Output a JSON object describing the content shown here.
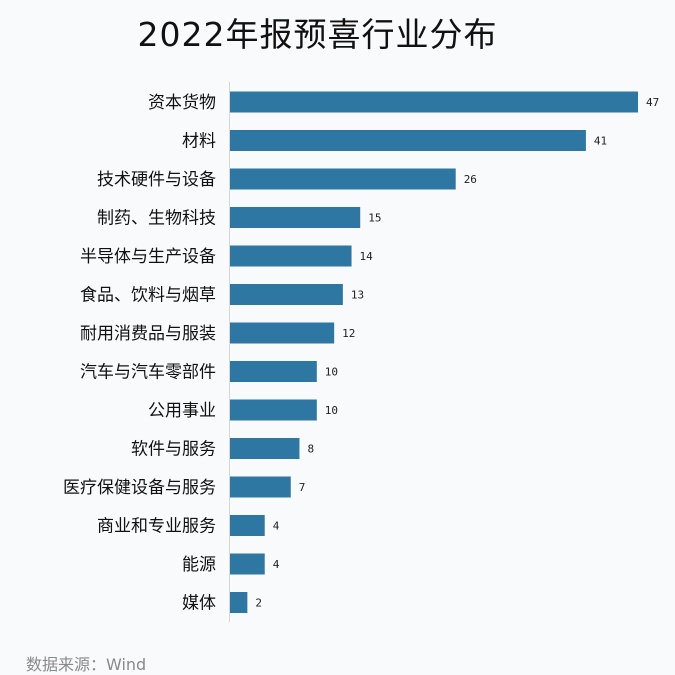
{
  "chart_data": {
    "type": "bar",
    "orientation": "horizontal",
    "title": "2022年报预喜行业分布",
    "categories": [
      "资本货物",
      "材料",
      "技术硬件与设备",
      "制药、生物科技",
      "半导体与生产设备",
      "食品、饮料与烟草",
      "耐用消费品与服装",
      "汽车与汽车零部件",
      "公用事业",
      "软件与服务",
      "医疗保健设备与服务",
      "商业和专业服务",
      "能源",
      "媒体"
    ],
    "values": [
      47,
      41,
      26,
      15,
      14,
      13,
      12,
      10,
      10,
      8,
      7,
      4,
      4,
      2
    ],
    "xlim": [
      0,
      47
    ],
    "grid": false,
    "bar_color": "#2e77a3",
    "source": "数据来源：Wind"
  }
}
